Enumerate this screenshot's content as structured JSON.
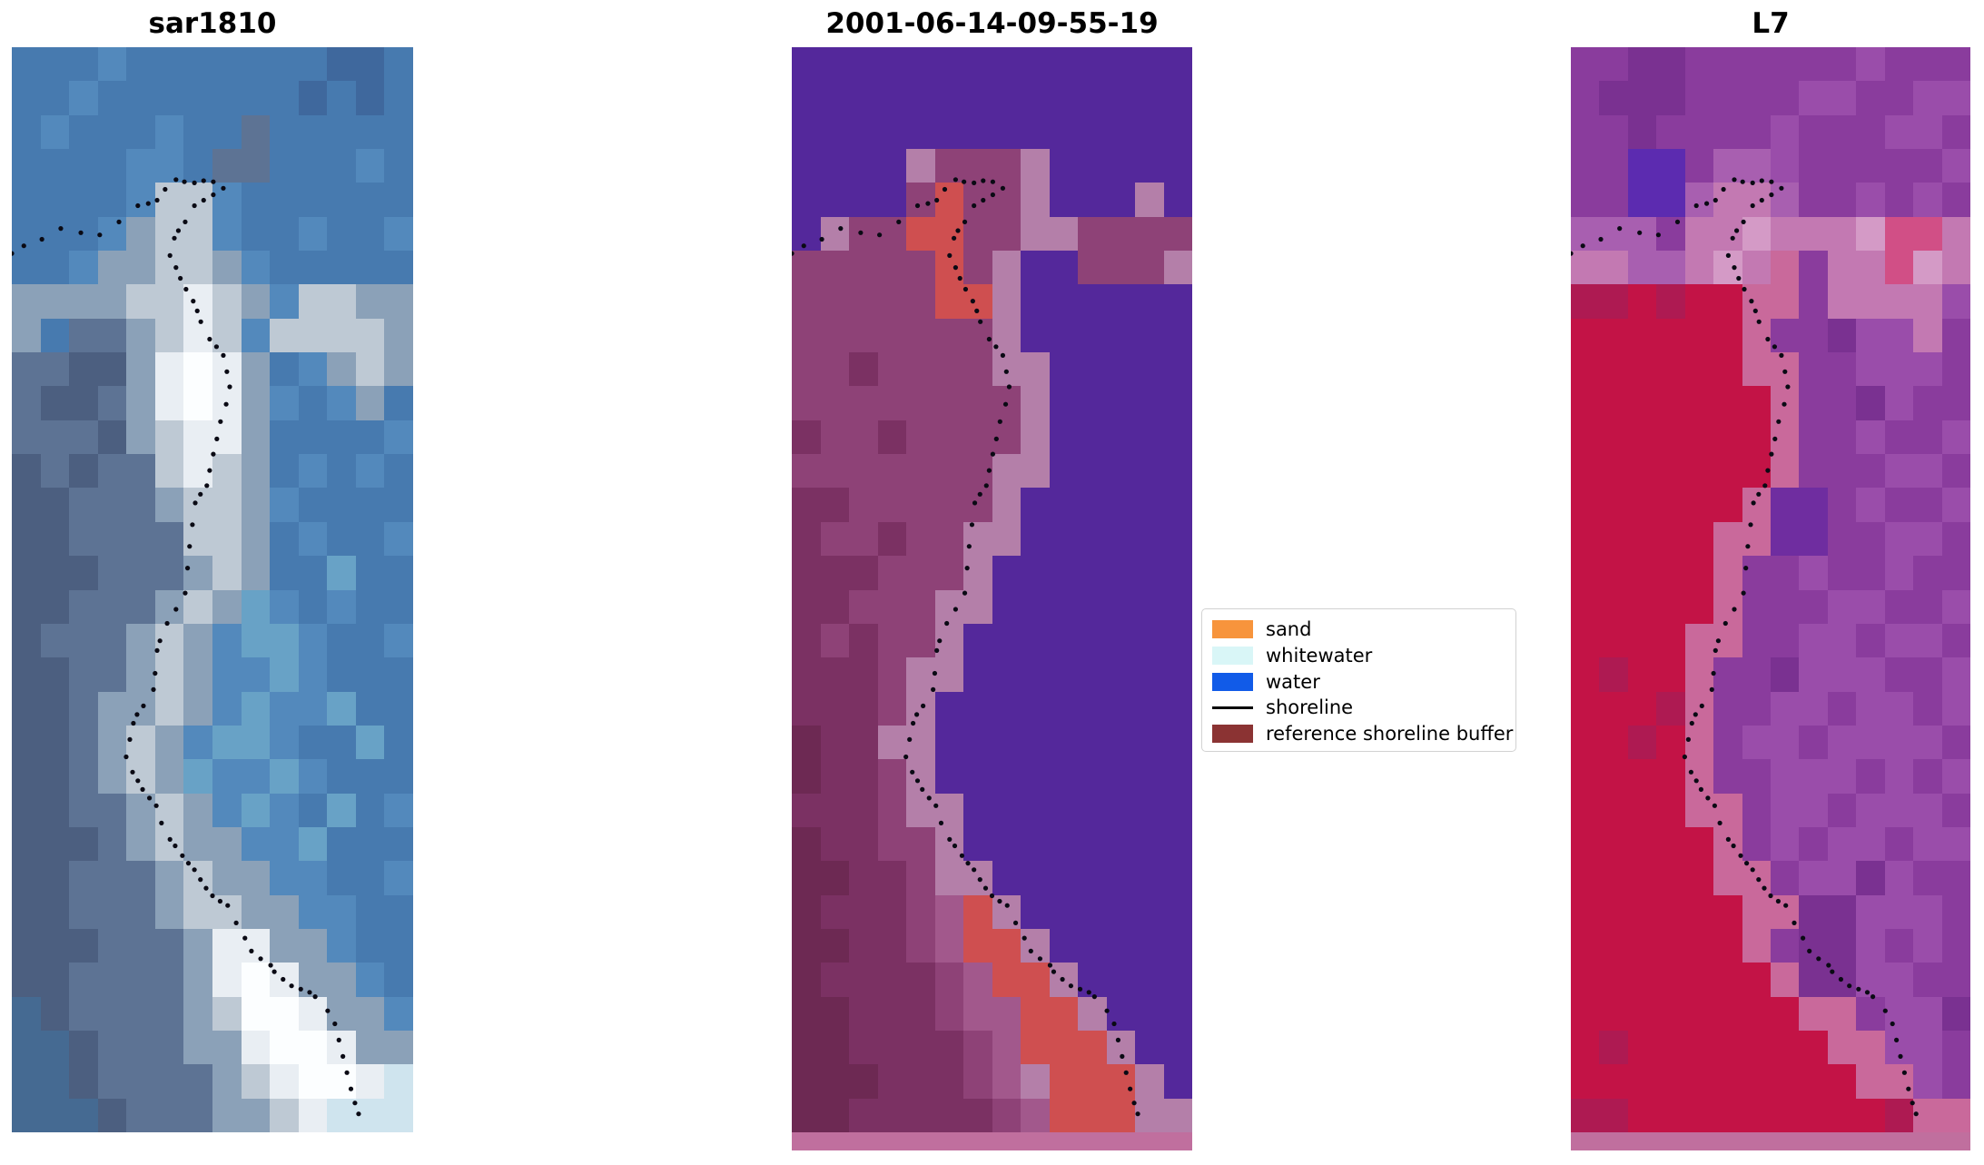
{
  "figure": {
    "background": "#ffffff",
    "panels": [
      {
        "title": "sar1810",
        "kind": "sar-backscatter-image",
        "cols": 14,
        "palette": {
          "a": "#477aaf",
          "b": "#5389bc",
          "c": "#3f689d",
          "d": "#5d7394",
          "e": "#4c5f80",
          "f": "#8ba1b8",
          "g": "#bec9d4",
          "h": "#e9eef3",
          "i": "#fcfeff",
          "j": "#68a2c6",
          "k": "#cfe4ee",
          "m": "#456a92"
        },
        "rows": [
          "aaabaaaaaaacca",
          "aabaaaaaaacaca",
          "abaaabaadaaaaa",
          "aaaabbaddaaaba",
          "aaaabggbaaaaaa",
          "aaabfggbaabaab",
          "aabffggfbaaaaa",
          "ffffgghgfbggff",
          "faddfghgbggggf",
          "ddeefhihfabfgf",
          "deedfhihfbabfa",
          "dddefghhfaaaab",
          "ededdghgfababa",
          "eedddfggfbaaaa",
          "eeddddggfabaab",
          "eeedddfgfaajaa",
          "eedddfgfjbabaa",
          "edddfgfbjjbaab",
          "eeddfgfbbjbaaa",
          "eedffgfbjbbjaa",
          "eedfgfbjjbaaja",
          "eedfgfjbbjbaaa",
          "eeddfgfbjbajab",
          "eeedfgffbbjaaa",
          "eedddfgffbbaab",
          "eedddfggffbbaa",
          "eeedddfhhffbaa",
          "eeddddfhihffba",
          "meddddfgiihffb",
          "mmedddffhiihff",
          "mmeddddfghiihk",
          "mmmedddffghkkk"
        ],
        "bottom_strip_color": null
      },
      {
        "title": "2001-06-14-09-55-19",
        "kind": "classified-image",
        "cols": 14,
        "palette": {
          "p": "#54289b",
          "q": "#8e4277",
          "r": "#a2588c",
          "s": "#b47fa9",
          "t": "#7b3163",
          "u": "#6d2953",
          "v": "#cf4f50"
        },
        "rows": [
          "pppppppppppppp",
          "pppppppppppppp",
          "pppppppppppppp",
          "ppppsqqqsppppp",
          "ppppqvqqspppsp",
          "psqqvvqqssqqqq",
          "qqqqqvqsppqqqs",
          "qqqqqvvspppppp",
          "qqqqqqqspppppp",
          "qqtqqqqssppppp",
          "qqqqqqqqsppppp",
          "tqqtqqqqsppppp",
          "qqqqqqqssppppp",
          "ttqqqqqspppppp",
          "tqqtqqsspppppp",
          "tttqqqsppppppp",
          "ttqqqssppppppp",
          "tqtqqspppppppp",
          "tttqsspppppppp",
          "tttqsppppppppp",
          "uttsspppppppp p",
          "uttqsppppppppp",
          "tttqsspppppppp",
          "uttqqspppppppp",
          "uuttqssppppppp",
          "utttqrvspppppp",
          "uuttqrvvsppppp",
          "uttttqrvvspppp",
          "uutttqrrvvsppp",
          "uuttttqrvvvspp",
          "uuutttqrsvvvsp",
          "uutttttqrvvvss"
        ],
        "bottom_strip_color": "#c06f9e"
      },
      {
        "title": "L7",
        "kind": "landsat7-image",
        "cols": 14,
        "palette": {
          "A": "#8a3c9d",
          "B": "#7a3191",
          "C": "#9a4daa",
          "D": "#5c2bb0",
          "E": "#a85fb0",
          "F": "#c379b2",
          "G": "#d49ac6",
          "H": "#d14f86",
          "I": "#c31346",
          "J": "#ae1a52",
          "K": "#c9699b",
          "M": "#6f2da0"
        },
        "rows": [
          "AABBAAAAAACAAA",
          "ABBBAAAACCAACC",
          "AABAAAACAAACCA",
          "AADDAEECAAAAAC",
          "AADDEFFEAACACA",
          "EEEAFFGFFFGHHF",
          "FFEEFGFKAFFHGF",
          "JJIJIIKKAFFFFC",
          "IIIIIIKAABCCFA",
          "IIIIIIKKAACCCA",
          "IIIIIIIKAABCAA",
          "IIIIIIIKAACAAC",
          "IIIIIIIKAAACCA",
          "IIIIIIKMMACAAC",
          "IIIIIKKMMAACCA",
          "IIIIIKAACAACAA",
          "IIIIIKAAACCAAC",
          "IIIIKKAACCACCA",
          "IJIIKAABCCCAAC",
          "IIIJKAACCACCAC",
          "IIJIKACCACCCCA",
          "IIIIKAACCCACAC",
          "IIIIKKACCACCCA",
          "IIIIIKACACCACC",
          "IIIIIKKACCBCAA",
          "IIIIIIKKBBCCCA",
          "IIIIIIKABBCACA",
          "IIIIIIIKBBCCAA",
          "IIIIIIIIKKACCB",
          "IJIIIIIIIKKCCA",
          "IIIIIIIIIIKKCA",
          "JJIIIIIIIIIJKK"
        ],
        "bottom_strip_color": "#c06f9e"
      }
    ],
    "shoreline": {
      "color": "#0a0a14",
      "dot_radius": 2.6,
      "points": [
        [
          0,
          19
        ],
        [
          3,
          18.3
        ],
        [
          7.5,
          17.7
        ],
        [
          12.2,
          16.7
        ],
        [
          17.2,
          17.1
        ],
        [
          21.9,
          17.3
        ],
        [
          26.7,
          16.1
        ],
        [
          31.4,
          14.6
        ],
        [
          34,
          14.4
        ],
        [
          36.2,
          14.1
        ],
        [
          38.2,
          13.1
        ],
        [
          40.9,
          12.2
        ],
        [
          43,
          12.4
        ],
        [
          45.5,
          12.5
        ],
        [
          47.8,
          12.3
        ],
        [
          50.2,
          12.4
        ],
        [
          52.7,
          13
        ],
        [
          50.2,
          13.6
        ],
        [
          47.8,
          14.1
        ],
        [
          45.5,
          14.6
        ],
        [
          43.2,
          16.1
        ],
        [
          41.5,
          16.9
        ],
        [
          40.5,
          17.6
        ],
        [
          39.4,
          19.2
        ],
        [
          40.9,
          20.3
        ],
        [
          42,
          21.3
        ],
        [
          43.4,
          22.3
        ],
        [
          45.2,
          23.4
        ],
        [
          46.2,
          24.3
        ],
        [
          47.1,
          25.3
        ],
        [
          49.3,
          26.9
        ],
        [
          51,
          27.6
        ],
        [
          52.7,
          28.4
        ],
        [
          53.6,
          29.9
        ],
        [
          54.3,
          31.3
        ],
        [
          53.4,
          32.9
        ],
        [
          52,
          34.5
        ],
        [
          51.1,
          36.1
        ],
        [
          50.2,
          37.5
        ],
        [
          49.3,
          39
        ],
        [
          48.6,
          40.4
        ],
        [
          47,
          41.2
        ],
        [
          45.7,
          42
        ],
        [
          45,
          44
        ],
        [
          44.3,
          46
        ],
        [
          43.8,
          48
        ],
        [
          43.2,
          50.3
        ],
        [
          40.9,
          51.8
        ],
        [
          38.7,
          53.1
        ],
        [
          36.9,
          54.7
        ],
        [
          36.2,
          55.6
        ],
        [
          35.7,
          57.7
        ],
        [
          35.3,
          59.2
        ],
        [
          32.8,
          60.7
        ],
        [
          31.2,
          61.5
        ],
        [
          30.3,
          62.3
        ],
        [
          29.4,
          63.8
        ],
        [
          28.5,
          65.4
        ],
        [
          30.1,
          66.8
        ],
        [
          31.4,
          67.6
        ],
        [
          32.6,
          68.4
        ],
        [
          34.3,
          69.2
        ],
        [
          36,
          69.9
        ],
        [
          37.3,
          71.5
        ],
        [
          39.4,
          73
        ],
        [
          40.7,
          73.6
        ],
        [
          42.5,
          74.5
        ],
        [
          44,
          75.2
        ],
        [
          45.5,
          75.8
        ],
        [
          47,
          76.7
        ],
        [
          48.4,
          77.5
        ],
        [
          50,
          78.2
        ],
        [
          51.9,
          78.7
        ],
        [
          53.8,
          79.1
        ],
        [
          55.9,
          80.7
        ],
        [
          58.1,
          82.1
        ],
        [
          59.7,
          83.3
        ],
        [
          62,
          84
        ],
        [
          64.5,
          84.6
        ],
        [
          65.4,
          85.2
        ],
        [
          67.6,
          85.9
        ],
        [
          69.7,
          86.5
        ],
        [
          72,
          86.8
        ],
        [
          74.2,
          87.1
        ],
        [
          75.6,
          87.5
        ],
        [
          78.7,
          88.8
        ],
        [
          80.5,
          90
        ],
        [
          81.5,
          91.5
        ],
        [
          82.5,
          93
        ],
        [
          83.5,
          94.5
        ],
        [
          84.5,
          96
        ],
        [
          85.5,
          97.3
        ],
        [
          86.4,
          98.3
        ]
      ]
    },
    "legend": {
      "entries": [
        {
          "label": "sand",
          "color": "#f7943c",
          "type": "patch",
          "icon": "sand-swatch"
        },
        {
          "label": "whitewater",
          "color": "#d9f6f7",
          "type": "patch",
          "icon": "whitewater-swatch"
        },
        {
          "label": "water",
          "color": "#115be8",
          "type": "patch",
          "icon": "water-swatch"
        },
        {
          "label": "shoreline",
          "color": "#000000",
          "type": "line",
          "icon": "shoreline-swatch"
        },
        {
          "label": "reference shoreline buffer",
          "color": "#8b3333",
          "type": "patch",
          "icon": "buffer-swatch"
        }
      ]
    }
  },
  "chart_data": {
    "type": "heatmap",
    "subtype": "satellite-image-panels",
    "title": "",
    "panels": [
      "sar1810",
      "2001-06-14-09-55-19",
      "L7"
    ],
    "legend_entries": [
      "sand",
      "whitewater",
      "water",
      "shoreline",
      "reference shoreline buffer"
    ],
    "legend_colors": [
      "#f7943c",
      "#d9f6f7",
      "#115be8",
      "#000000",
      "#8b3333"
    ],
    "legend_position": "center-right between second and third panel",
    "grid": "off",
    "axes": "off",
    "description": "Three coregistered coastal image tiles (SAR, classified optical, Landsat 7) with the detected shoreline overlaid as small black dots"
  }
}
